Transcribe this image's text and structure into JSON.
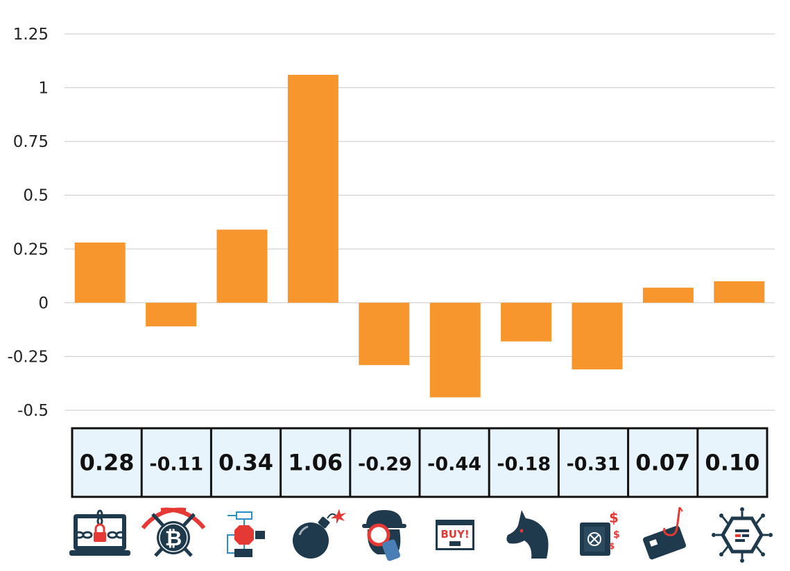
{
  "chart_data": {
    "type": "bar",
    "values": [
      0.28,
      -0.11,
      0.34,
      1.06,
      -0.29,
      -0.44,
      -0.18,
      -0.31,
      0.07,
      0.1
    ],
    "ylim": [
      -0.5,
      1.25
    ],
    "yticks": [
      "1.25",
      "1",
      "0.75",
      "0.5",
      "0.25",
      "0",
      "-0.25",
      "-0.5"
    ],
    "ytick_values": [
      1.25,
      1,
      0.75,
      0.5,
      0.25,
      0,
      -0.25,
      -0.5
    ],
    "table_labels": [
      "0.28",
      "-0.11",
      "0.34",
      "1.06",
      "-0.29",
      "-0.44",
      "-0.18",
      "-0.31",
      "0.07",
      "0.10"
    ],
    "grid": true,
    "category_icons": [
      "ransomware-laptop-icon",
      "bitcoin-mining-icon",
      "flowchart-stop-icon",
      "bomb-icon",
      "spy-magnifier-icon",
      "buy-popup-adware-icon",
      "trojan-horse-icon",
      "safe-money-icon",
      "credit-card-phishing-icon",
      "virus-bot-icon"
    ],
    "colors": {
      "bar": "#F7962D",
      "grid": "#c8c8c8",
      "cell_fill": "#E8F4FC",
      "cell_border": "#111111",
      "icon_dark": "#1F3A4D",
      "icon_red": "#E53935"
    }
  }
}
